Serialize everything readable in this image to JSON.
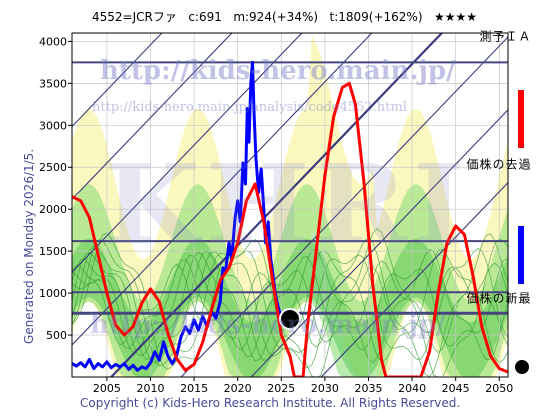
{
  "header": {
    "code": "4552=JCRファ",
    "current": "c:691",
    "mid": "m:924(+34%)",
    "target": "t:1809(+162%)",
    "stars": "★★★★"
  },
  "side_text": "Generated on Monday 2026/1/5.",
  "watermark": {
    "url": "http://kids-hero.main.jp/",
    "path": "http://kids-hero.main.jp/analysis/code4552.html",
    "big": "KHRI"
  },
  "legend": {
    "forecast": "ＡＩ予測",
    "past": "過去の株価",
    "latest": "最新の株価",
    "forecast_color": "#ff0000",
    "past_color": "#0000ff",
    "latest_color": "#000000"
  },
  "copyright": "Copyright (c) Kids-Hero Research Institute. All Rights Reserved.",
  "chart_data": {
    "type": "line",
    "xlim": [
      2001,
      2051
    ],
    "ylim": [
      0,
      4100
    ],
    "x_ticks": [
      2005,
      2010,
      2015,
      2020,
      2025,
      2030,
      2035,
      2040,
      2045,
      2050
    ],
    "y_ticks": [
      500,
      1000,
      1500,
      2000,
      2500,
      3000,
      3500,
      4000
    ],
    "horizontal_levels": [
      3750,
      1620,
      1010,
      760
    ],
    "latest_point": {
      "x": 2026.0,
      "y": 691
    },
    "series": [
      {
        "name": "過去の株価",
        "color": "#0000ff",
        "points": [
          [
            2001.0,
            160
          ],
          [
            2001.5,
            130
          ],
          [
            2002.0,
            170
          ],
          [
            2002.5,
            120
          ],
          [
            2003.0,
            210
          ],
          [
            2003.5,
            100
          ],
          [
            2004.0,
            160
          ],
          [
            2004.5,
            120
          ],
          [
            2005.0,
            180
          ],
          [
            2005.5,
            110
          ],
          [
            2006.0,
            150
          ],
          [
            2006.5,
            120
          ],
          [
            2007.0,
            160
          ],
          [
            2007.5,
            90
          ],
          [
            2008.0,
            140
          ],
          [
            2008.5,
            80
          ],
          [
            2009.0,
            120
          ],
          [
            2009.5,
            100
          ],
          [
            2010.0,
            170
          ],
          [
            2010.5,
            300
          ],
          [
            2011.0,
            200
          ],
          [
            2011.5,
            420
          ],
          [
            2012.0,
            250
          ],
          [
            2012.5,
            160
          ],
          [
            2013.0,
            250
          ],
          [
            2013.5,
            480
          ],
          [
            2014.0,
            600
          ],
          [
            2014.5,
            520
          ],
          [
            2015.0,
            680
          ],
          [
            2015.5,
            560
          ],
          [
            2016.0,
            720
          ],
          [
            2016.5,
            600
          ],
          [
            2017.0,
            780
          ],
          [
            2017.5,
            700
          ],
          [
            2018.0,
            900
          ],
          [
            2018.3,
            1300
          ],
          [
            2018.6,
            1250
          ],
          [
            2019.0,
            1600
          ],
          [
            2019.3,
            1400
          ],
          [
            2019.7,
            1900
          ],
          [
            2020.0,
            2100
          ],
          [
            2020.3,
            1850
          ],
          [
            2020.6,
            2550
          ],
          [
            2020.9,
            2300
          ],
          [
            2021.1,
            3200
          ],
          [
            2021.3,
            2800
          ],
          [
            2021.5,
            3500
          ],
          [
            2021.7,
            3750
          ],
          [
            2021.9,
            3100
          ],
          [
            2022.1,
            2600
          ],
          [
            2022.4,
            2200
          ],
          [
            2022.7,
            2480
          ],
          [
            2023.0,
            2000
          ],
          [
            2023.2,
            1600
          ],
          [
            2023.5,
            1850
          ],
          [
            2023.8,
            1400
          ],
          [
            2024.0,
            1250
          ],
          [
            2024.3,
            1000
          ],
          [
            2024.6,
            850
          ],
          [
            2025.0,
            700
          ],
          [
            2025.3,
            620
          ],
          [
            2025.6,
            660
          ],
          [
            2026.0,
            691
          ]
        ]
      },
      {
        "name": "ＡＩ予測",
        "color": "#ff0000",
        "points": [
          [
            2001.0,
            2150
          ],
          [
            2002.0,
            2100
          ],
          [
            2003.0,
            1900
          ],
          [
            2004.0,
            1450
          ],
          [
            2005.0,
            1000
          ],
          [
            2006.0,
            620
          ],
          [
            2007.0,
            500
          ],
          [
            2008.0,
            600
          ],
          [
            2009.0,
            880
          ],
          [
            2010.0,
            1050
          ],
          [
            2011.0,
            900
          ],
          [
            2012.0,
            520
          ],
          [
            2013.0,
            220
          ],
          [
            2014.0,
            80
          ],
          [
            2015.0,
            150
          ],
          [
            2016.0,
            420
          ],
          [
            2017.0,
            800
          ],
          [
            2018.0,
            1150
          ],
          [
            2019.0,
            1300
          ],
          [
            2020.0,
            1600
          ],
          [
            2021.0,
            2100
          ],
          [
            2022.0,
            2300
          ],
          [
            2023.0,
            1850
          ],
          [
            2024.0,
            1150
          ],
          [
            2025.0,
            500
          ],
          [
            2026.0,
            250
          ],
          [
            2026.5,
            0
          ],
          [
            2027.5,
            0
          ],
          [
            2028.0,
            600
          ],
          [
            2029.0,
            1500
          ],
          [
            2030.0,
            2400
          ],
          [
            2031.0,
            3100
          ],
          [
            2032.0,
            3450
          ],
          [
            2032.8,
            3500
          ],
          [
            2033.5,
            3250
          ],
          [
            2034.5,
            2300
          ],
          [
            2035.5,
            1100
          ],
          [
            2036.5,
            200
          ],
          [
            2037.0,
            0
          ],
          [
            2041.0,
            0
          ],
          [
            2042.0,
            300
          ],
          [
            2043.0,
            1000
          ],
          [
            2044.0,
            1600
          ],
          [
            2045.0,
            1800
          ],
          [
            2046.0,
            1700
          ],
          [
            2047.0,
            1200
          ],
          [
            2048.0,
            600
          ],
          [
            2049.0,
            250
          ],
          [
            2050.0,
            100
          ],
          [
            2051.0,
            60
          ]
        ]
      }
    ]
  }
}
